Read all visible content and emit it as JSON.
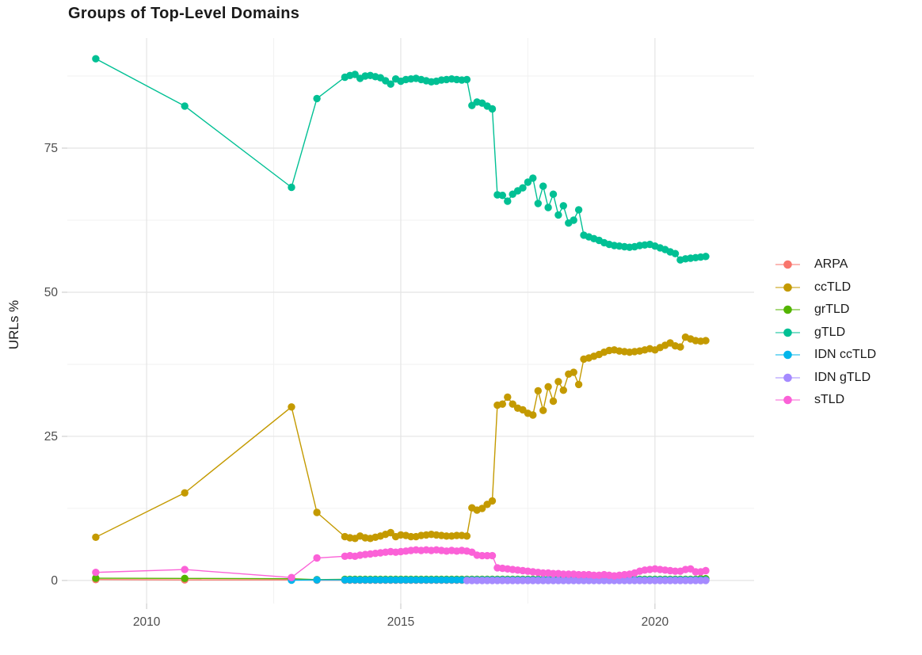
{
  "chart_data": {
    "type": "line",
    "title": "Groups of Top-Level Domains",
    "xlabel": "",
    "ylabel": "URLs %",
    "legend_position": "right",
    "grid": true,
    "xlim": [
      2008.44,
      2021.95
    ],
    "ylim": [
      -4.0,
      94.1
    ],
    "x_axis": {
      "ticks": [
        {
          "value": 2010,
          "label": "2010"
        },
        {
          "value": 2015,
          "label": "2015"
        },
        {
          "value": 2020,
          "label": "2020"
        }
      ],
      "minor": [
        2012.5,
        2017.5
      ]
    },
    "y_axis": {
      "ticks": [
        {
          "value": 0,
          "label": "0"
        },
        {
          "value": 25,
          "label": "25"
        },
        {
          "value": 50,
          "label": "50"
        },
        {
          "value": 75,
          "label": "75"
        }
      ],
      "minor": [
        12.5,
        37.5,
        62.5,
        87.5
      ]
    },
    "x_sparse": [
      2009.0,
      2010.75,
      2012.85,
      2013.35
    ],
    "x_dense": {
      "start": 2013.9,
      "step": 0.1,
      "count": 72
    },
    "series": [
      {
        "name": "ARPA",
        "color": "#F8766D",
        "start_index": 0,
        "y": [
          0.15,
          0.1,
          0.1,
          0.05,
          0.05,
          0.05,
          0.05,
          0.05,
          0.05,
          0.05,
          0.05,
          0.05,
          0.05,
          0.05,
          0.05,
          0.05,
          0.05,
          0.05,
          0.05,
          0.05,
          0.05,
          0.05,
          0.05,
          0.05,
          0.05,
          0.05,
          0.05,
          0.05,
          0.05,
          0.05,
          0.05,
          0.05,
          0.05,
          0.05,
          0.05,
          0.05,
          0.05,
          0.05,
          0.05,
          0.05,
          0.05,
          0.05,
          0.05,
          0.05,
          0.05,
          0.05,
          0.05,
          0.05,
          0.05,
          0.05,
          0.05,
          0.05,
          0.05,
          0.05,
          0.05,
          0.05,
          0.05,
          0.05,
          0.05,
          0.05,
          0.05,
          0.05,
          0.05,
          0.05,
          0.05,
          0.05,
          0.05,
          0.05,
          0.05,
          0.05,
          0.05,
          0.05,
          0.05,
          0.05,
          0.05,
          0.05
        ]
      },
      {
        "name": "ccTLD",
        "color": "#C49A00",
        "start_index": 0,
        "y": [
          7.5,
          15.2,
          30.1,
          11.8,
          7.6,
          7.4,
          7.3,
          7.7,
          7.4,
          7.3,
          7.5,
          7.7,
          8.0,
          8.3,
          7.6,
          7.9,
          7.8,
          7.6,
          7.6,
          7.8,
          7.9,
          8.0,
          7.9,
          7.8,
          7.7,
          7.7,
          7.8,
          7.8,
          7.7,
          12.6,
          12.2,
          12.5,
          13.2,
          13.8,
          30.4,
          30.6,
          31.8,
          30.6,
          29.9,
          29.6,
          29.0,
          28.7,
          32.9,
          29.5,
          33.6,
          31.1,
          34.5,
          33.0,
          35.8,
          36.1,
          34.0,
          38.4,
          38.6,
          38.9,
          39.2,
          39.6,
          39.9,
          40.0,
          39.8,
          39.7,
          39.6,
          39.7,
          39.8,
          40.0,
          40.2,
          40.0,
          40.4,
          40.8,
          41.2,
          40.7,
          40.5,
          42.2,
          41.9,
          41.6,
          41.5,
          41.6
        ]
      },
      {
        "name": "grTLD",
        "color": "#53B400",
        "start_index": 0,
        "y": [
          0.4,
          0.35,
          0.3,
          0.15,
          0.2,
          0.2,
          0.2,
          0.2,
          0.2,
          0.2,
          0.2,
          0.2,
          0.2,
          0.2,
          0.2,
          0.2,
          0.2,
          0.2,
          0.2,
          0.2,
          0.2,
          0.2,
          0.2,
          0.2,
          0.2,
          0.2,
          0.2,
          0.2,
          0.2,
          0.2,
          0.2,
          0.2,
          0.2,
          0.2,
          0.2,
          0.2,
          0.2,
          0.2,
          0.2,
          0.2,
          0.2,
          0.2,
          0.2,
          0.2,
          0.2,
          0.2,
          0.2,
          0.2,
          0.2,
          0.2,
          0.2,
          0.2,
          0.2,
          0.2,
          0.2,
          0.2,
          0.2,
          0.2,
          0.2,
          0.2,
          0.2,
          0.2,
          0.2,
          0.2,
          0.2,
          0.2,
          0.2,
          0.2,
          0.2,
          0.2,
          0.2,
          0.2,
          0.2,
          0.2,
          0.3,
          0.3
        ]
      },
      {
        "name": "gTLD",
        "color": "#00C094",
        "start_index": 0,
        "y": [
          90.5,
          82.3,
          68.2,
          83.6,
          87.3,
          87.6,
          87.8,
          87.1,
          87.5,
          87.6,
          87.4,
          87.2,
          86.7,
          86.1,
          87.0,
          86.6,
          86.9,
          87.0,
          87.1,
          86.9,
          86.7,
          86.5,
          86.6,
          86.8,
          86.9,
          87.0,
          86.9,
          86.8,
          86.9,
          82.4,
          83.0,
          82.8,
          82.3,
          81.8,
          66.9,
          66.8,
          65.8,
          67.0,
          67.6,
          68.1,
          69.1,
          69.8,
          65.4,
          68.4,
          64.7,
          67.0,
          63.4,
          65.0,
          62.0,
          62.5,
          64.3,
          59.9,
          59.6,
          59.3,
          59.0,
          58.6,
          58.3,
          58.1,
          58.0,
          57.9,
          57.8,
          57.9,
          58.1,
          58.2,
          58.3,
          58.0,
          57.7,
          57.4,
          57.0,
          56.7,
          55.6,
          55.8,
          55.9,
          56.0,
          56.1,
          56.2
        ]
      },
      {
        "name": "IDN ccTLD",
        "color": "#00B6EB",
        "start_index": 2,
        "y": [
          0.05,
          0.1,
          0.1,
          0.1,
          0.1,
          0.1,
          0.1,
          0.1,
          0.1,
          0.1,
          0.1,
          0.1,
          0.1,
          0.1,
          0.1,
          0.1,
          0.1,
          0.1,
          0.1,
          0.1,
          0.1,
          0.1,
          0.1,
          0.1,
          0.1,
          0.1,
          0.1,
          0.1,
          0.1,
          0.1,
          0.1,
          0.1,
          0.1,
          0.1,
          0.1,
          0.1,
          0.1,
          0.1,
          0.1,
          0.1,
          0.1,
          0.1,
          0.1,
          0.1,
          0.1,
          0.1,
          0.1,
          0.1,
          0.1,
          0.1,
          0.1,
          0.1,
          0.1,
          0.1,
          0.1,
          0.1,
          0.1,
          0.1,
          0.1,
          0.1,
          0.1,
          0.1,
          0.1,
          0.1,
          0.1,
          0.1,
          0.1,
          0.1,
          0.1,
          0.1,
          0.1,
          0.1,
          0.1,
          0.1
        ]
      },
      {
        "name": "IDN gTLD",
        "color": "#A58AFF",
        "start_index": 28,
        "y": [
          0.0,
          0.0,
          0.0,
          0.0,
          0.0,
          0.0,
          0.0,
          0.0,
          0.0,
          0.0,
          0.0,
          0.0,
          0.0,
          0.0,
          0.0,
          0.0,
          0.0,
          0.0,
          0.0,
          0.0,
          0.0,
          0.0,
          0.0,
          0.0,
          0.0,
          0.0,
          0.0,
          0.0,
          0.0,
          0.0,
          0.0,
          0.0,
          0.0,
          0.0,
          0.0,
          0.0,
          0.0,
          0.0,
          0.0,
          0.0,
          0.0,
          0.0,
          0.0,
          0.0,
          0.0,
          0.0,
          0.0,
          0.0
        ]
      },
      {
        "name": "sTLD",
        "color": "#FB61D7",
        "start_index": 0,
        "y": [
          1.4,
          1.9,
          0.5,
          3.9,
          4.2,
          4.3,
          4.2,
          4.4,
          4.5,
          4.6,
          4.7,
          4.8,
          4.9,
          5.0,
          4.9,
          5.0,
          5.1,
          5.2,
          5.3,
          5.2,
          5.3,
          5.2,
          5.3,
          5.2,
          5.1,
          5.2,
          5.1,
          5.2,
          5.1,
          4.9,
          4.4,
          4.3,
          4.3,
          4.3,
          2.2,
          2.1,
          2.0,
          1.9,
          1.8,
          1.7,
          1.6,
          1.5,
          1.4,
          1.3,
          1.3,
          1.2,
          1.2,
          1.1,
          1.1,
          1.1,
          1.0,
          1.0,
          1.0,
          0.9,
          0.9,
          1.0,
          0.9,
          0.8,
          0.9,
          1.0,
          1.1,
          1.3,
          1.6,
          1.8,
          1.9,
          2.0,
          1.9,
          1.8,
          1.7,
          1.6,
          1.6,
          1.9,
          2.0,
          1.5,
          1.5,
          1.7
        ]
      }
    ],
    "style_colors": {
      "grid_major": "#E4E4E4",
      "grid_minor": "#F2F2F2",
      "tick_mark": "#CFCFCF",
      "axis_text": "#4D4D4D",
      "text": "#1A1A1A",
      "background": "#FFFFFF"
    }
  }
}
